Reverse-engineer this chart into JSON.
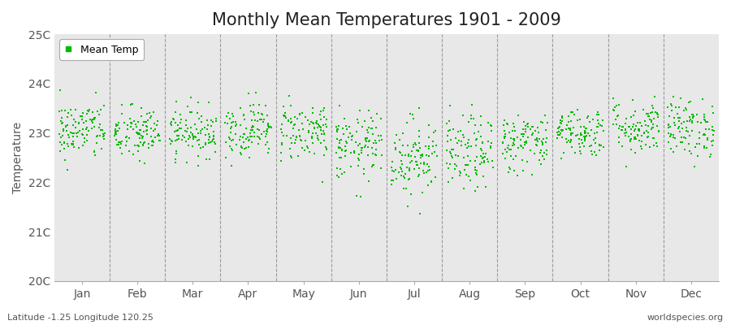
{
  "title": "Monthly Mean Temperatures 1901 - 2009",
  "ylabel": "Temperature",
  "subtitle": "Latitude -1.25 Longitude 120.25",
  "watermark": "worldspecies.org",
  "legend_label": "Mean Temp",
  "dot_color": "#00bb00",
  "figure_bg_color": "#ffffff",
  "plot_bg_color": "#e8e8e8",
  "ylim": [
    20,
    25
  ],
  "yticks": [
    20,
    21,
    22,
    23,
    24,
    25
  ],
  "ytick_labels": [
    "20C",
    "21C",
    "22C",
    "23C",
    "24C",
    "25C"
  ],
  "months": [
    "Jan",
    "Feb",
    "Mar",
    "Apr",
    "May",
    "Jun",
    "Jul",
    "Aug",
    "Sep",
    "Oct",
    "Nov",
    "Dec"
  ],
  "monthly_means": [
    23.05,
    22.98,
    23.02,
    23.08,
    23.05,
    22.72,
    22.52,
    22.58,
    22.82,
    23.02,
    23.12,
    23.1
  ],
  "monthly_stds": [
    0.3,
    0.28,
    0.25,
    0.28,
    0.3,
    0.35,
    0.4,
    0.38,
    0.3,
    0.25,
    0.28,
    0.3
  ],
  "n_years": 109,
  "seed": 42,
  "marker_size": 3,
  "title_fontsize": 15,
  "axis_fontsize": 10,
  "tick_fontsize": 10
}
